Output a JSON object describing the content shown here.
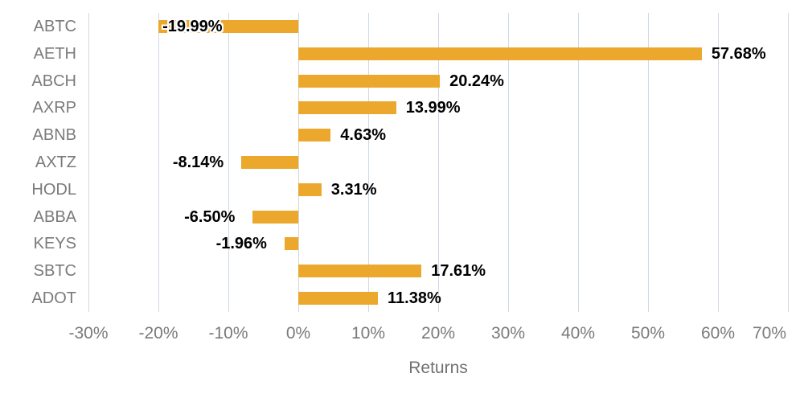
{
  "chart_data": {
    "type": "bar",
    "orientation": "horizontal",
    "title": "",
    "xlabel": "Returns",
    "ylabel": "",
    "xlim": [
      -30,
      70
    ],
    "grid": true,
    "legend": false,
    "bar_color": "#EBA82C",
    "grid_color": "#CFD9E4",
    "zero_line_color": "#D6D6D6",
    "axis_text_color": "#7A7A7A",
    "data_label_color": "#000000",
    "categories": [
      "ABTC",
      "AETH",
      "ABCH",
      "AXRP",
      "ABNB",
      "AXTZ",
      "HODL",
      "ABBA",
      "KEYS",
      "SBTC",
      "ADOT"
    ],
    "values": [
      -19.99,
      57.68,
      20.24,
      13.99,
      4.63,
      -8.14,
      3.31,
      -6.5,
      -1.96,
      17.61,
      11.38
    ],
    "data_labels": [
      "-19.99%",
      "57.68%",
      "20.24%",
      "13.99%",
      "4.63%",
      "-8.14%",
      "3.31%",
      "-6.50%",
      "-1.96%",
      "17.61%",
      "11.38%"
    ],
    "x_ticks": [
      {
        "label": "-30%",
        "value": -30
      },
      {
        "label": "-20%",
        "value": -20
      },
      {
        "label": "-10%",
        "value": -10
      },
      {
        "label": "0%",
        "value": 0
      },
      {
        "label": "10%",
        "value": 10
      },
      {
        "label": "20%",
        "value": 20
      },
      {
        "label": "30%",
        "value": 30
      },
      {
        "label": "40%",
        "value": 40
      },
      {
        "label": "50%",
        "value": 50
      },
      {
        "label": "60%",
        "value": 60
      },
      {
        "label": "70%",
        "value": 70
      }
    ]
  }
}
